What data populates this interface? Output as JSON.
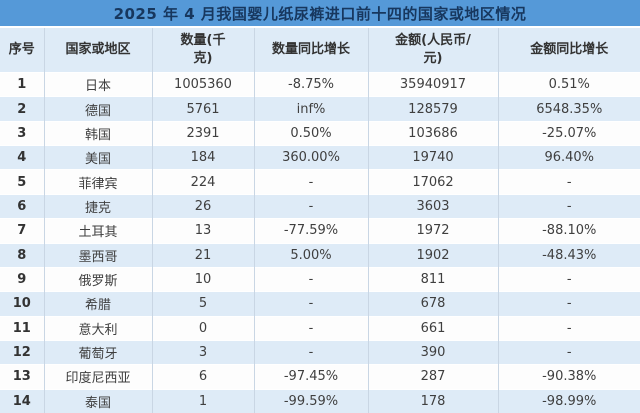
{
  "chart_data": {
    "type": "table",
    "title": "2025 年 4 月我国婴儿纸尿裤进口前十四的国家或地区情况",
    "columns": [
      "序号",
      "国家或地区",
      "数量(千\n克)",
      "数量同比增长",
      "金额(人民币/\n元)",
      "金额同比增长"
    ],
    "column_units": {
      "quantity": "千克",
      "amount": "人民币/元"
    },
    "rows": [
      [
        "1",
        "日本",
        "1005360",
        "-8.75%",
        "35940917",
        "0.51%"
      ],
      [
        "2",
        "德国",
        "5761",
        "inf%",
        "128579",
        "6548.35%"
      ],
      [
        "3",
        "韩国",
        "2391",
        "0.50%",
        "103686",
        "-25.07%"
      ],
      [
        "4",
        "美国",
        "184",
        "360.00%",
        "19740",
        "96.40%"
      ],
      [
        "5",
        "菲律宾",
        "224",
        "-",
        "17062",
        "-"
      ],
      [
        "6",
        "捷克",
        "26",
        "-",
        "3603",
        "-"
      ],
      [
        "7",
        "土耳其",
        "13",
        "-77.59%",
        "1972",
        "-88.10%"
      ],
      [
        "8",
        "墨西哥",
        "21",
        "5.00%",
        "1902",
        "-48.43%"
      ],
      [
        "9",
        "俄罗斯",
        "10",
        "-",
        "811",
        "-"
      ],
      [
        "10",
        "希腊",
        "5",
        "-",
        "678",
        "-"
      ],
      [
        "11",
        "意大利",
        "0",
        "-",
        "661",
        "-"
      ],
      [
        "12",
        "葡萄牙",
        "3",
        "-",
        "390",
        "-"
      ],
      [
        "13",
        "印度尼西亚",
        "6",
        "-97.45%",
        "287",
        "-90.38%"
      ],
      [
        "14",
        "泰国",
        "1",
        "-99.59%",
        "178",
        "-98.99%"
      ]
    ]
  },
  "colors": {
    "title_bar_bg": "#5599d8",
    "title_text": "#17375e",
    "header_bg": "#deebf7",
    "header_text": "#333333",
    "row_alt_bg": "#deebf7",
    "grid_line": "#c9d6e4",
    "body_text": "#3f3f3f"
  }
}
